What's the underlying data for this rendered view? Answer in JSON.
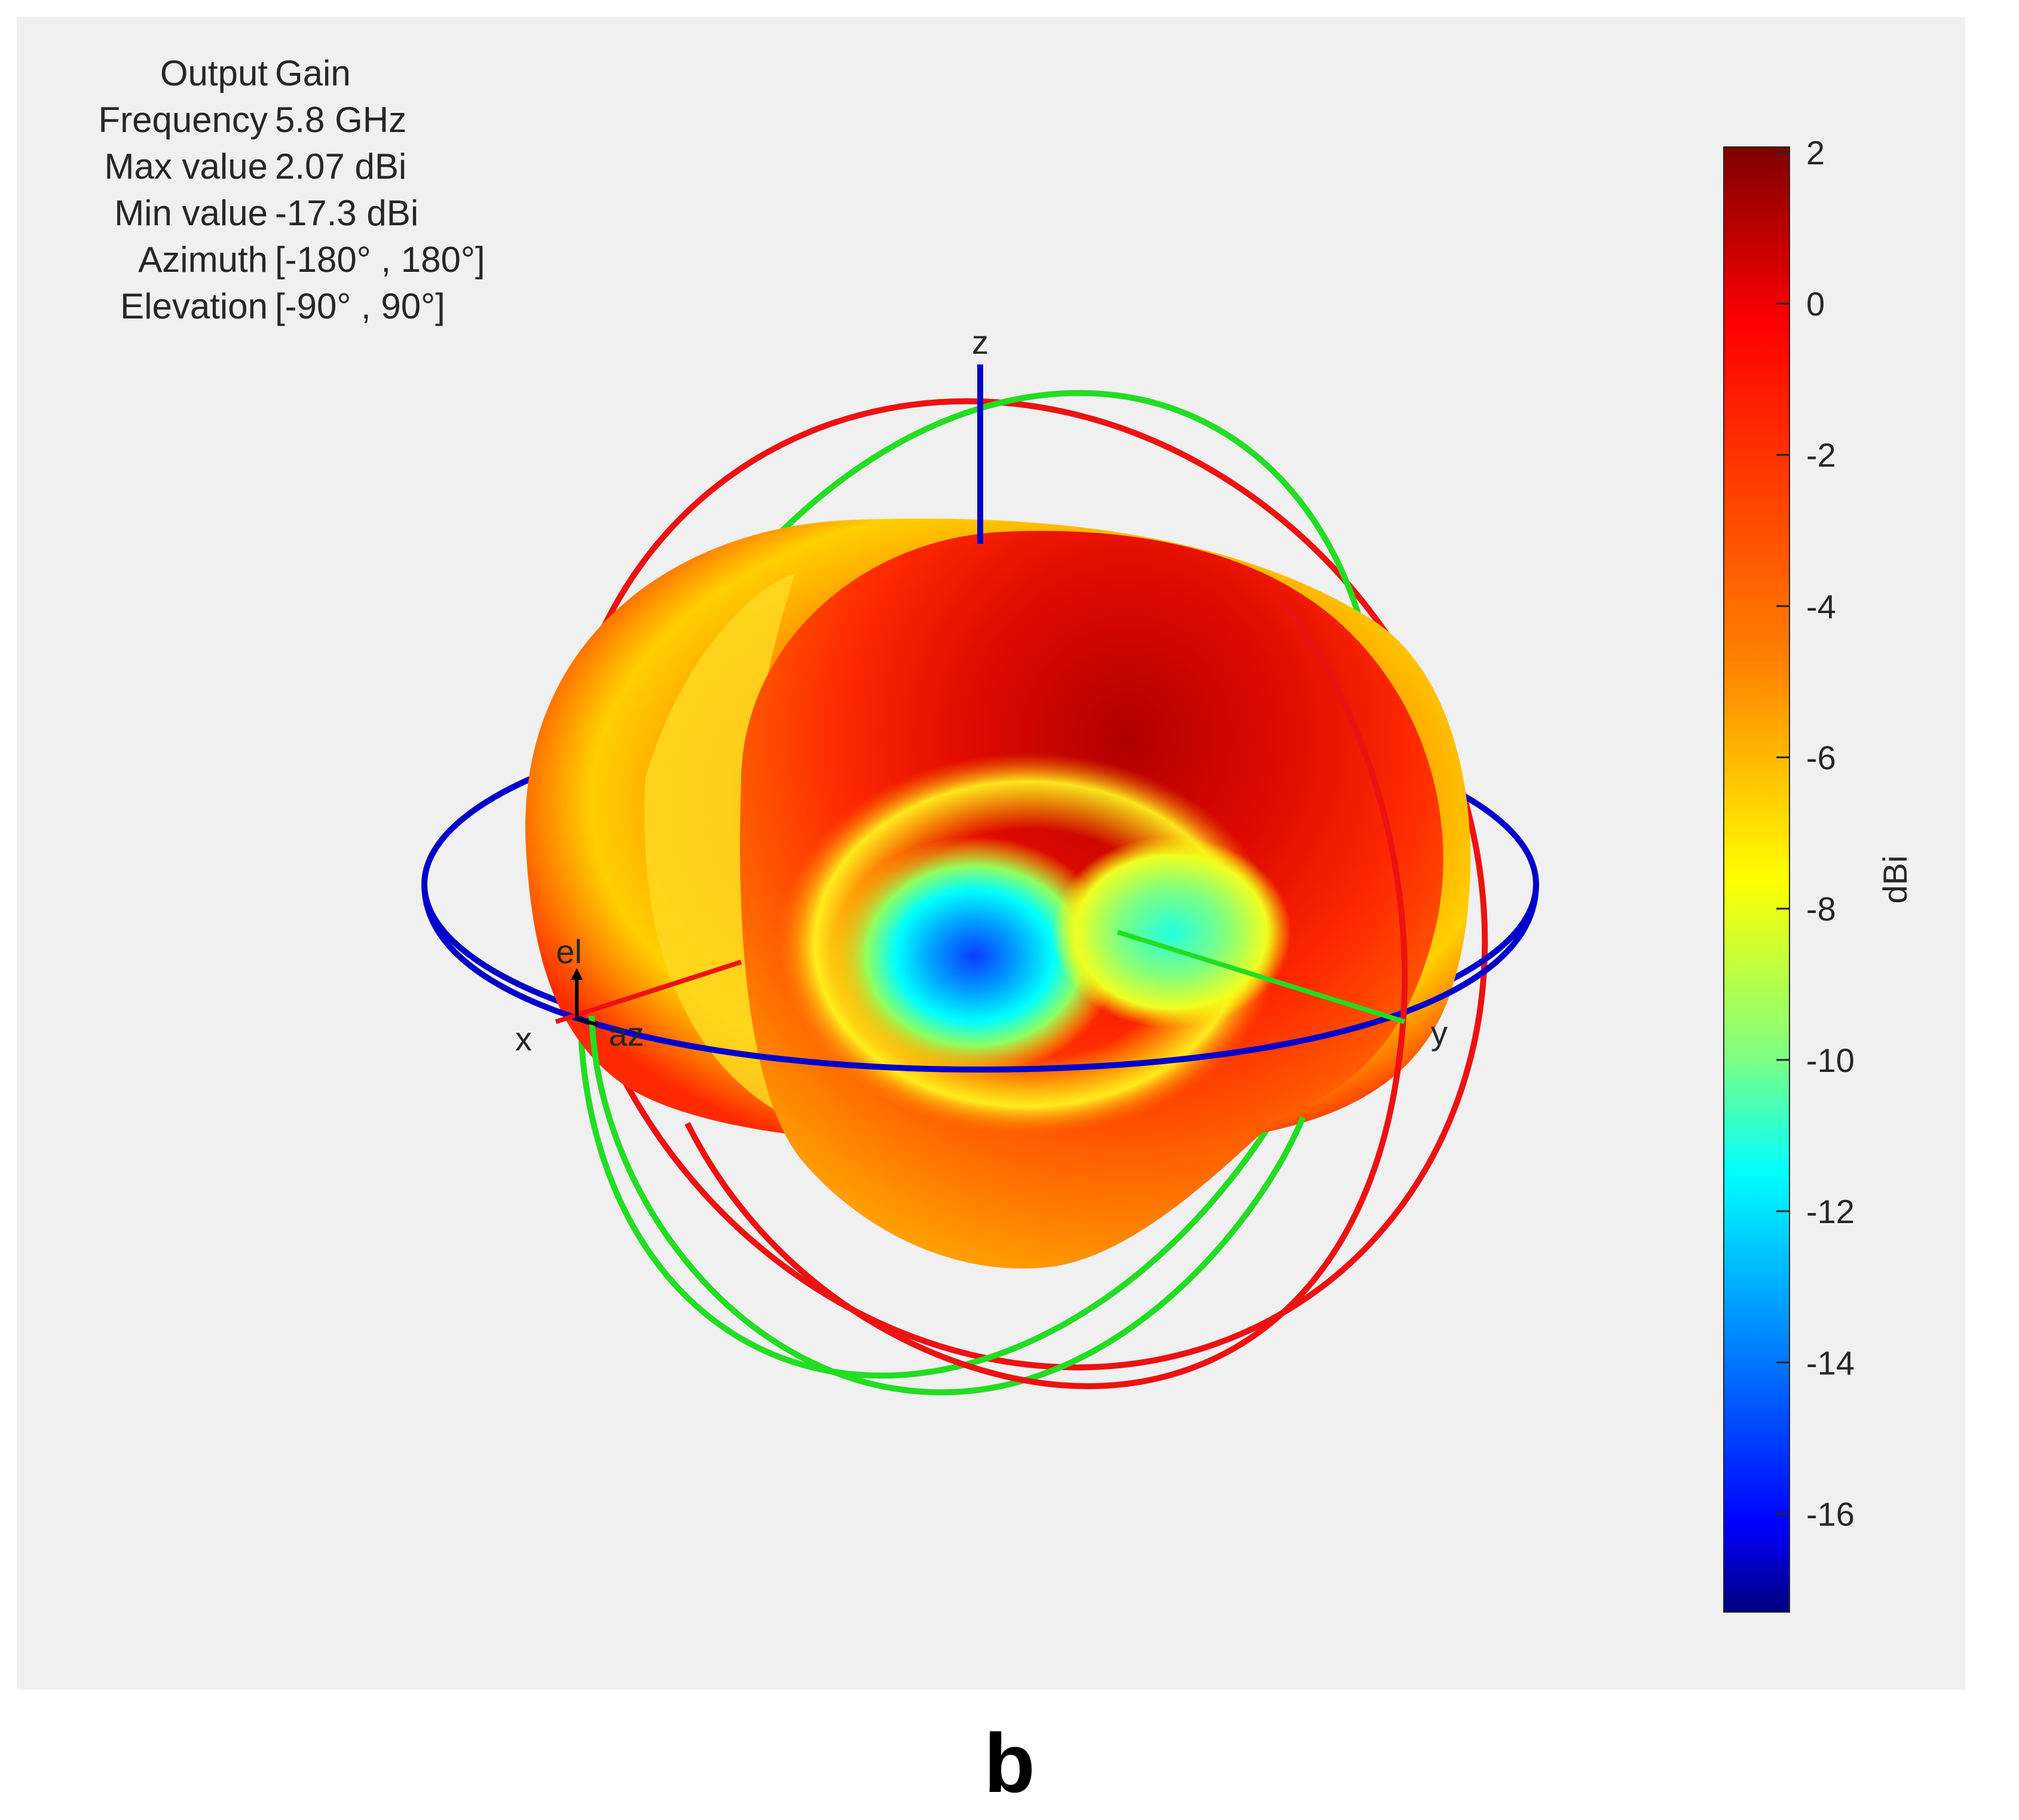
{
  "info": [
    {
      "key": "Output",
      "value": "Gain"
    },
    {
      "key": "Frequency",
      "value": "5.8 GHz"
    },
    {
      "key": "Max value",
      "value": "2.07 dBi"
    },
    {
      "key": "Min value",
      "value": "-17.3 dBi"
    },
    {
      "key": "Azimuth",
      "value": "[-180° , 180°]"
    },
    {
      "key": "Elevation",
      "value": "[-90° , 90°]"
    }
  ],
  "axes_labels": {
    "x": "x",
    "y": "y",
    "z": "z",
    "el": "el",
    "az": "az"
  },
  "colorbar": {
    "label": "dBi",
    "range": [
      -17.3,
      2.07
    ],
    "ticks": [
      2,
      0,
      -2,
      -4,
      -6,
      -8,
      -10,
      -12,
      -14,
      -16
    ],
    "colormap": "jet"
  },
  "panel_label": "b",
  "chart_data": {
    "type": "3d-radiation-pattern",
    "quantity": "Gain",
    "frequency": "5.8 GHz",
    "max_value_dBi": 2.07,
    "min_value_dBi": -17.3,
    "azimuth_range_deg": [
      -180,
      180
    ],
    "elevation_range_deg": [
      -90,
      90
    ],
    "colorbar_unit": "dBi",
    "colorbar_ticks": [
      2,
      0,
      -2,
      -4,
      -6,
      -8,
      -10,
      -12,
      -14,
      -16
    ],
    "great_circles": {
      "azimuth_plane": "#0000cc",
      "xz_plane": "#ee1111",
      "yz_plane": "#22dd22"
    }
  }
}
